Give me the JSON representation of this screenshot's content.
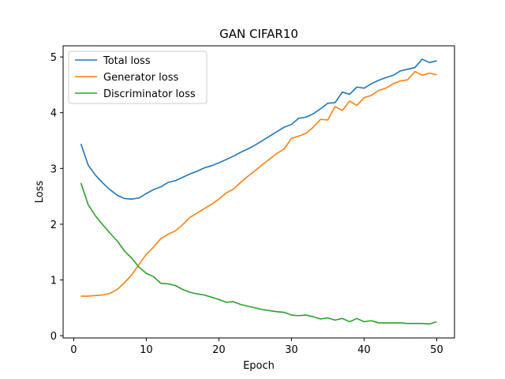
{
  "chart_data": {
    "type": "line",
    "title": "GAN CIFAR10",
    "xlabel": "Epoch",
    "ylabel": "Loss",
    "xlim": [
      -1.45,
      52.45
    ],
    "ylim": [
      -0.04,
      5.2
    ],
    "xticks": [
      0,
      10,
      20,
      30,
      40,
      50
    ],
    "yticks": [
      0,
      1,
      2,
      3,
      4,
      5
    ],
    "legend_position": "top-left",
    "grid": false,
    "x": [
      1,
      2,
      3,
      4,
      5,
      6,
      7,
      8,
      9,
      10,
      11,
      12,
      13,
      14,
      15,
      16,
      17,
      18,
      19,
      20,
      21,
      22,
      23,
      24,
      25,
      26,
      27,
      28,
      29,
      30,
      31,
      32,
      33,
      34,
      35,
      36,
      37,
      38,
      39,
      40,
      41,
      42,
      43,
      44,
      45,
      46,
      47,
      48,
      49,
      50
    ],
    "series": [
      {
        "name": "Total loss",
        "color": "#1f77b4",
        "values": [
          3.44,
          3.06,
          2.88,
          2.74,
          2.62,
          2.52,
          2.46,
          2.45,
          2.47,
          2.55,
          2.62,
          2.67,
          2.75,
          2.78,
          2.84,
          2.9,
          2.95,
          3.01,
          3.05,
          3.1,
          3.16,
          3.22,
          3.29,
          3.35,
          3.42,
          3.5,
          3.58,
          3.66,
          3.74,
          3.79,
          3.9,
          3.92,
          3.98,
          4.07,
          4.17,
          4.18,
          4.37,
          4.33,
          4.46,
          4.44,
          4.52,
          4.58,
          4.63,
          4.67,
          4.75,
          4.78,
          4.81,
          4.96,
          4.9,
          4.93
        ]
      },
      {
        "name": "Generator loss",
        "color": "#ff7f0e",
        "values": [
          0.71,
          0.71,
          0.72,
          0.73,
          0.76,
          0.83,
          0.95,
          1.09,
          1.28,
          1.46,
          1.59,
          1.74,
          1.82,
          1.88,
          1.99,
          2.12,
          2.2,
          2.28,
          2.36,
          2.45,
          2.56,
          2.63,
          2.75,
          2.86,
          2.96,
          3.07,
          3.17,
          3.27,
          3.35,
          3.54,
          3.58,
          3.63,
          3.74,
          3.88,
          3.87,
          4.11,
          4.04,
          4.21,
          4.13,
          4.27,
          4.31,
          4.4,
          4.44,
          4.52,
          4.57,
          4.59,
          4.74,
          4.67,
          4.71,
          4.68
        ]
      },
      {
        "name": "Discriminator loss",
        "color": "#2ca02c",
        "values": [
          2.74,
          2.35,
          2.15,
          1.99,
          1.84,
          1.7,
          1.52,
          1.39,
          1.23,
          1.12,
          1.06,
          0.94,
          0.93,
          0.9,
          0.83,
          0.78,
          0.75,
          0.73,
          0.69,
          0.65,
          0.6,
          0.61,
          0.56,
          0.53,
          0.5,
          0.47,
          0.45,
          0.43,
          0.42,
          0.37,
          0.36,
          0.37,
          0.34,
          0.3,
          0.32,
          0.28,
          0.31,
          0.25,
          0.31,
          0.25,
          0.27,
          0.23,
          0.23,
          0.23,
          0.23,
          0.22,
          0.22,
          0.22,
          0.21,
          0.25
        ]
      }
    ]
  }
}
